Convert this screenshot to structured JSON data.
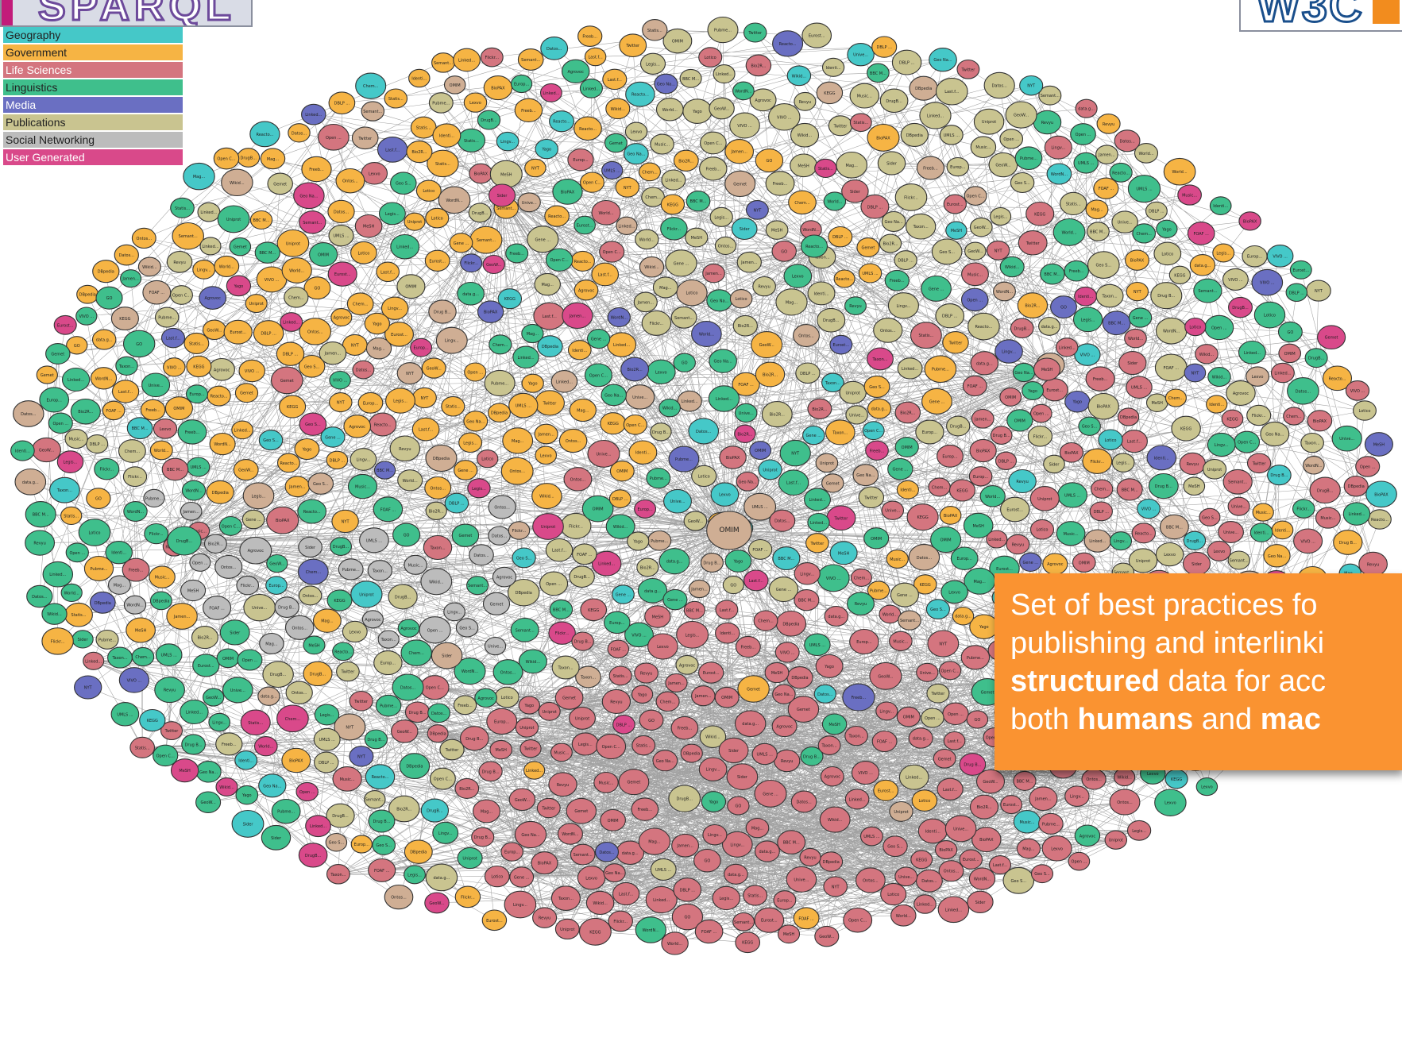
{
  "logos": {
    "sparql": {
      "text": "SPARQL",
      "accent": "#c21b7a",
      "stroke": "#6d4a9b"
    },
    "w3c": {
      "text": "W3C",
      "accent": "#f28c1e",
      "stroke": "#1a4f8c"
    }
  },
  "legend": {
    "items": [
      {
        "label": "Geography",
        "color": "#45c8c8"
      },
      {
        "label": "Government",
        "color": "#f6b444"
      },
      {
        "label": "Life Sciences",
        "color": "#d4757f"
      },
      {
        "label": "Linguistics",
        "color": "#3fbf8c"
      },
      {
        "label": "Media",
        "color": "#6a6fc2"
      },
      {
        "label": "Publications",
        "color": "#c9c490"
      },
      {
        "label": "Social Networking",
        "color": "#bcbcbc"
      },
      {
        "label": "User Generated",
        "color": "#d9498a"
      }
    ]
  },
  "callout": {
    "line1": "Set of best practices fo",
    "line2": "publishing and interlinki",
    "line3_bold": "structured",
    "line3_rest": " data for acc",
    "line4_pre": "both ",
    "line4_bold1": "humans",
    "line4_mid": " and ",
    "line4_bold2": "mac"
  },
  "graph": {
    "edge_color": "#555555",
    "node_stroke": "#333333",
    "hubs": [
      "DBpedia",
      "Geo Na..."
    ],
    "sample_labels": [
      "DBpedia",
      "Geo Na...",
      "Unive...",
      "BioPAX",
      "Linked...",
      "GeoW...",
      "Europ...",
      "DBLP ...",
      "Uniprot",
      "Bio2R...",
      "Wikid...",
      "Open C...",
      "data.g...",
      "Lingv...",
      "Datos...",
      "Freeb...",
      "NYT",
      "BBC M...",
      "Semant...",
      "Linked...",
      "VIVO ...",
      "Ontos...",
      "Lexvo",
      "WordN...",
      "Yago",
      "Drug B...",
      "Pubme...",
      "Chem...",
      "Gene ...",
      "KEGG",
      "OMIM",
      "DrugB...",
      "Sider",
      "Reacto...",
      "MeSH",
      "UMLS ...",
      "GO",
      "Taxon...",
      "Flickr...",
      "Twitter",
      "Revyu",
      "FOAF ...",
      "Identi...",
      "Last.f...",
      "Music...",
      "Jamen...",
      "Mag...",
      "Statis...",
      "Eurost...",
      "World...",
      "Open ...",
      "Legis...",
      "Agrovoc",
      "Geo S...",
      "Gemet",
      "Lotico"
    ]
  }
}
